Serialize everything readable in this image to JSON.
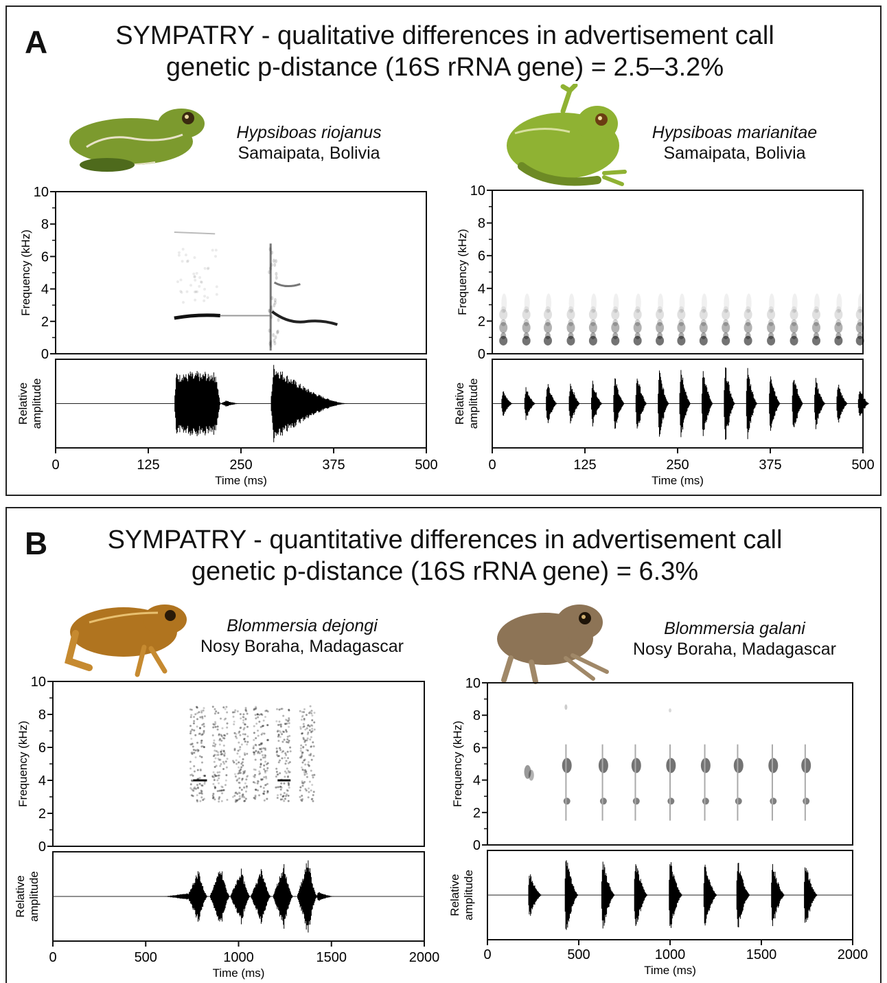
{
  "panel_a": {
    "letter": "A",
    "title_line1": "SYMPATRY - qualitative differences in advertisement call",
    "title_line2": "genetic p-distance (16S rRNA gene) = 2.5–3.2%",
    "left": {
      "species": "Hypsiboas riojanus",
      "locality": "Samaipata, Bolivia",
      "frog_color": "#7c9a2e"
    },
    "right": {
      "species": "Hypsiboas marianitae",
      "locality": "Samaipata, Bolivia",
      "frog_color": "#8fb233"
    }
  },
  "panel_b": {
    "letter": "B",
    "title_line1": "SYMPATRY - quantitative differences in advertisement call",
    "title_line2": "genetic p-distance (16S rRNA gene) = 6.3%",
    "left": {
      "species": "Blommersia dejongi",
      "locality": "Nosy Boraha, Madagascar",
      "frog_color": "#b0741f"
    },
    "right": {
      "species": "Blommersia galani",
      "locality": "Nosy Boraha, Madagascar",
      "frog_color": "#8d7456"
    }
  },
  "chart_data": [
    {
      "type": "spectrogram+oscillogram",
      "id": "a-left",
      "ylabel_spectrogram": "Frequency (kHz)",
      "ylabel_oscillogram_line1": "Relative",
      "ylabel_oscillogram_line2": "amplitude",
      "xlabel": "Time (ms)",
      "xlim": [
        0,
        500
      ],
      "ylim": [
        0,
        10
      ],
      "x_ticks": [
        "0",
        "125",
        "250",
        "375",
        "500"
      ],
      "y_ticks": [
        "0",
        "2",
        "4",
        "6",
        "8",
        "10"
      ],
      "notes": [
        {
          "start": 160,
          "end": 222,
          "freq": 2.3,
          "peak": 0.82,
          "shape": "tonal"
        },
        {
          "start": 290,
          "end": 355,
          "freq": 2.2,
          "peak": 1.0,
          "shape": "pulsed-decay"
        }
      ]
    },
    {
      "type": "spectrogram+oscillogram",
      "id": "a-right",
      "ylabel_spectrogram": "Frequency (kHz)",
      "ylabel_oscillogram_line1": "Relative",
      "ylabel_oscillogram_line2": "amplitude",
      "xlabel": "Time (ms)",
      "xlim": [
        0,
        500
      ],
      "ylim": [
        0,
        10
      ],
      "x_ticks": [
        "0",
        "125",
        "250",
        "375",
        "500"
      ],
      "y_ticks": [
        "0",
        "2",
        "4",
        "6",
        "8",
        "10"
      ],
      "pulse_times": [
        12,
        43,
        72,
        103,
        133,
        163,
        193,
        223,
        252,
        282,
        312,
        342,
        373,
        404,
        434,
        464,
        493
      ],
      "pulse_amplitudes": [
        0.35,
        0.45,
        0.55,
        0.6,
        0.6,
        0.7,
        0.78,
        0.9,
        1.0,
        0.95,
        1.0,
        0.95,
        0.85,
        0.8,
        0.65,
        0.55,
        0.4
      ],
      "bands_khz": [
        0.8,
        1.6,
        2.4
      ]
    },
    {
      "type": "spectrogram+oscillogram",
      "id": "b-left",
      "ylabel_spectrogram": "Frequency (kHz)",
      "ylabel_oscillogram_line1": "Relative",
      "ylabel_oscillogram_line2": "amplitude",
      "xlabel": "Time (ms)",
      "xlim": [
        0,
        2000
      ],
      "ylim": [
        0,
        10
      ],
      "x_ticks": [
        "0",
        "500",
        "1000",
        "1500",
        "2000"
      ],
      "y_ticks": [
        "0",
        "2",
        "4",
        "6",
        "8",
        "10"
      ],
      "pulse_times": [
        780,
        900,
        1010,
        1120,
        1240,
        1370
      ],
      "pulse_amplitudes": [
        0.7,
        0.8,
        0.7,
        0.75,
        0.85,
        1.0
      ],
      "band_khz": [
        2.7,
        8.5
      ]
    },
    {
      "type": "spectrogram+oscillogram",
      "id": "b-right",
      "ylabel_spectrogram": "Frequency (kHz)",
      "ylabel_oscillogram_line1": "Relative",
      "ylabel_oscillogram_line2": "amplitude",
      "xlabel": "Time (ms)",
      "xlim": [
        0,
        2000
      ],
      "ylim": [
        0,
        10
      ],
      "x_ticks": [
        "0",
        "500",
        "1000",
        "1500",
        "2000"
      ],
      "y_ticks": [
        "0",
        "2",
        "4",
        "6",
        "8",
        "10"
      ],
      "pulse_times": [
        230,
        430,
        630,
        810,
        1000,
        1190,
        1370,
        1560,
        1740
      ],
      "pulse_amplitudes": [
        0.6,
        1.0,
        0.95,
        0.95,
        0.95,
        0.9,
        0.95,
        0.9,
        0.85
      ],
      "bands_khz": [
        4.9,
        2.7
      ]
    }
  ]
}
